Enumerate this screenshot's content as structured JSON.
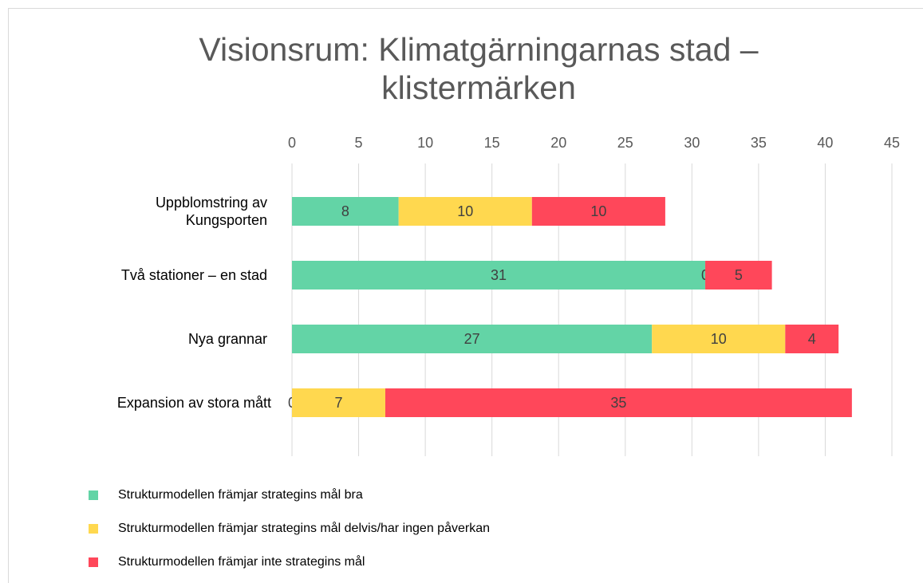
{
  "chart_data": {
    "type": "stacked-bar-horizontal",
    "title": "Visionsrum: Klimatgärningarnas stad – klistermärken",
    "categories": [
      "Uppblomstring av Kungsporten",
      "Två stationer – en stad",
      "Nya grannar",
      "Expansion av stora mått"
    ],
    "series": [
      {
        "name": "Strukturmodellen främjar strateginss mål bra",
        "color": "#63d4a6",
        "values": [
          8,
          31,
          27,
          0
        ]
      },
      {
        "name": "Strukturmodellen främjar strategins mål delvis/har ingen påverkan",
        "color": "#ffd84f",
        "values": [
          10,
          0,
          10,
          7
        ]
      },
      {
        "name": "Strukturmodellen främjar inte strategins mål",
        "color": "#ff475a",
        "values": [
          10,
          5,
          4,
          35
        ]
      }
    ],
    "xlim": [
      0,
      45
    ],
    "xticks": [
      0,
      5,
      10,
      15,
      20,
      25,
      30,
      35,
      40,
      45
    ],
    "grid": true
  }
}
